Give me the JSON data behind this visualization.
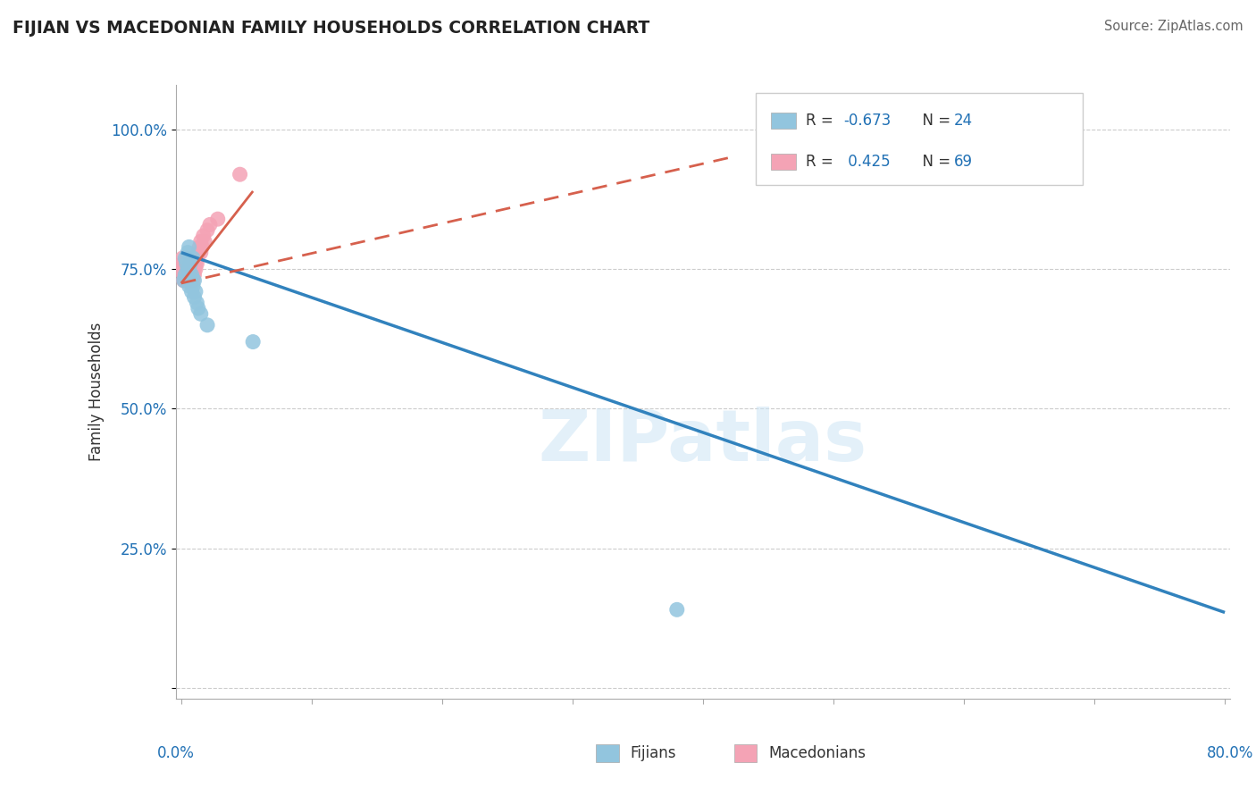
{
  "title": "FIJIAN VS MACEDONIAN FAMILY HOUSEHOLDS CORRELATION CHART",
  "source": "Source: ZipAtlas.com",
  "ylabel": "Family Households",
  "fijian_color": "#92c5de",
  "macedonian_color": "#f4a3b5",
  "fijian_R": -0.673,
  "fijian_N": 24,
  "macedonian_R": 0.425,
  "macedonian_N": 69,
  "fijian_line_color": "#3182bd",
  "macedonian_line_color": "#d6604d",
  "watermark": "ZIPatlas",
  "background_color": "#ffffff",
  "xlim": [
    -0.4,
    80.4
  ],
  "ylim": [
    -2.0,
    108.0
  ],
  "yticks": [
    0,
    25,
    50,
    75,
    100
  ],
  "ytick_labels": [
    "",
    "25.0%",
    "50.0%",
    "75.0%",
    "100.0%"
  ],
  "fijian_scatter_x": [
    0.2,
    0.3,
    0.3,
    0.4,
    0.5,
    0.5,
    0.6,
    0.6,
    0.6,
    0.7,
    0.7,
    0.8,
    0.8,
    0.9,
    0.9,
    1.0,
    1.0,
    1.1,
    1.2,
    1.3,
    1.5,
    2.0,
    5.5,
    38.0
  ],
  "fijian_scatter_y": [
    73,
    77,
    74,
    76,
    75,
    78,
    72,
    75,
    79,
    73,
    76,
    71,
    74,
    72,
    77,
    70,
    73,
    71,
    69,
    68,
    67,
    65,
    62,
    14
  ],
  "macedonian_scatter_x": [
    0.1,
    0.1,
    0.1,
    0.2,
    0.2,
    0.2,
    0.2,
    0.2,
    0.2,
    0.3,
    0.3,
    0.3,
    0.3,
    0.3,
    0.3,
    0.3,
    0.3,
    0.4,
    0.4,
    0.4,
    0.4,
    0.4,
    0.4,
    0.4,
    0.5,
    0.5,
    0.5,
    0.5,
    0.5,
    0.5,
    0.5,
    0.6,
    0.6,
    0.6,
    0.6,
    0.6,
    0.6,
    0.7,
    0.7,
    0.7,
    0.7,
    0.7,
    0.8,
    0.8,
    0.8,
    0.8,
    0.9,
    0.9,
    0.9,
    0.9,
    1.0,
    1.0,
    1.0,
    1.0,
    1.1,
    1.1,
    1.2,
    1.2,
    1.3,
    1.4,
    1.5,
    1.5,
    1.6,
    1.7,
    1.8,
    2.0,
    2.2,
    2.8,
    4.5
  ],
  "macedonian_scatter_y": [
    75,
    77,
    76,
    73,
    74,
    75,
    76,
    74,
    73,
    73,
    74,
    75,
    76,
    73,
    74,
    75,
    76,
    73,
    74,
    75,
    74,
    73,
    76,
    77,
    74,
    75,
    73,
    76,
    74,
    75,
    73,
    75,
    74,
    73,
    76,
    75,
    74,
    75,
    76,
    74,
    73,
    75,
    76,
    74,
    75,
    73,
    76,
    75,
    74,
    73,
    77,
    75,
    76,
    74,
    76,
    75,
    77,
    76,
    78,
    79,
    78,
    80,
    79,
    81,
    80,
    82,
    83,
    84,
    92
  ],
  "fijian_line_x": [
    0.0,
    80.0
  ],
  "fijian_line_y": [
    78.0,
    13.5
  ],
  "macedonian_line_x": [
    0.0,
    5.5
  ],
  "macedonian_line_y": [
    72.5,
    89.0
  ],
  "macedonian_dashed_line_x": [
    0.0,
    42.0
  ],
  "macedonian_dashed_line_y": [
    72.5,
    95.0
  ]
}
